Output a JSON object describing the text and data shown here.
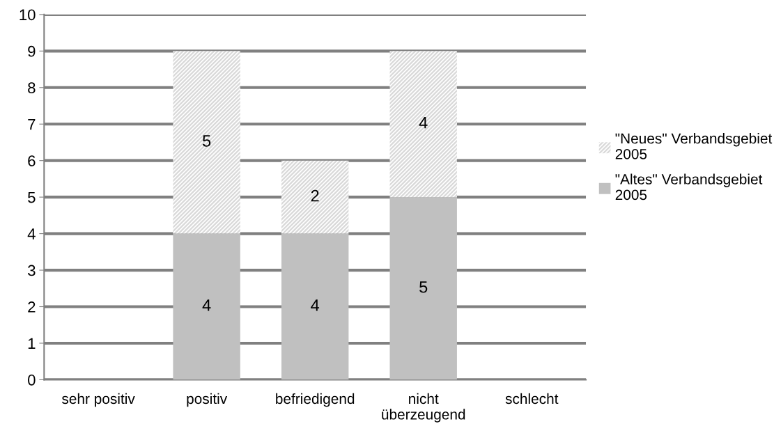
{
  "chart_data": {
    "type": "bar",
    "stacked": true,
    "categories": [
      "sehr positiv",
      "positiv",
      "befriedigend",
      "nicht überzeugend",
      "schlecht"
    ],
    "series": [
      {
        "name": "\"Altes\" Verbandsgebiet 2005",
        "color": "#c0c0c0",
        "values": [
          null,
          4,
          4,
          5,
          null
        ]
      },
      {
        "name": "\"Neues\" Verbandsgebiet 2005",
        "color": "#d9d9d9",
        "values": [
          null,
          5,
          2,
          4,
          null
        ]
      }
    ],
    "ylim": [
      0,
      10
    ],
    "yticks": [
      0,
      1,
      2,
      3,
      4,
      5,
      6,
      7,
      8,
      9,
      10
    ],
    "grid": "y",
    "legend": "right",
    "data_labels": true
  }
}
